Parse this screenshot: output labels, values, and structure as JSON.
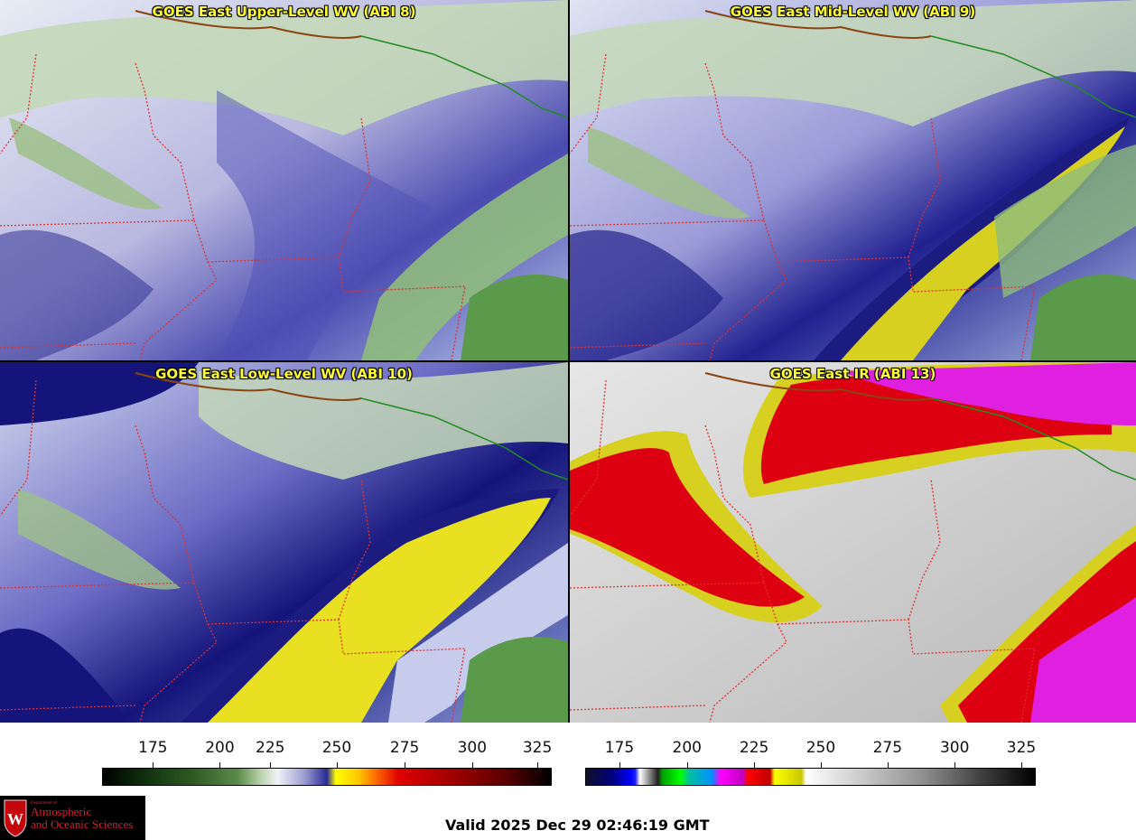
{
  "panels": [
    {
      "title": "GOES East Upper-Level WV (ABI 8)"
    },
    {
      "title": "GOES East Mid-Level WV (ABI 9)"
    },
    {
      "title": "GOES East Low-Level WV (ABI 10)"
    },
    {
      "title": "GOES East IR (ABI 13)"
    }
  ],
  "colorbars": {
    "wv": {
      "ticks": [
        "175",
        "200",
        "225",
        "250",
        "275",
        "300",
        "325"
      ]
    },
    "ir": {
      "ticks": [
        "175",
        "200",
        "225",
        "250",
        "275",
        "300",
        "325"
      ]
    }
  },
  "logo": {
    "line1": "Department of",
    "line2": "Atmospheric",
    "line3": "and Oceanic Sciences",
    "seal_letter": "W"
  },
  "valid_time": "Valid 2025 Dec 29 02:46:19 GMT",
  "colors": {
    "title_text": "#ffff33",
    "state_border": "#e03030",
    "coast": "#8b4513",
    "intl_border": "#228b22"
  }
}
